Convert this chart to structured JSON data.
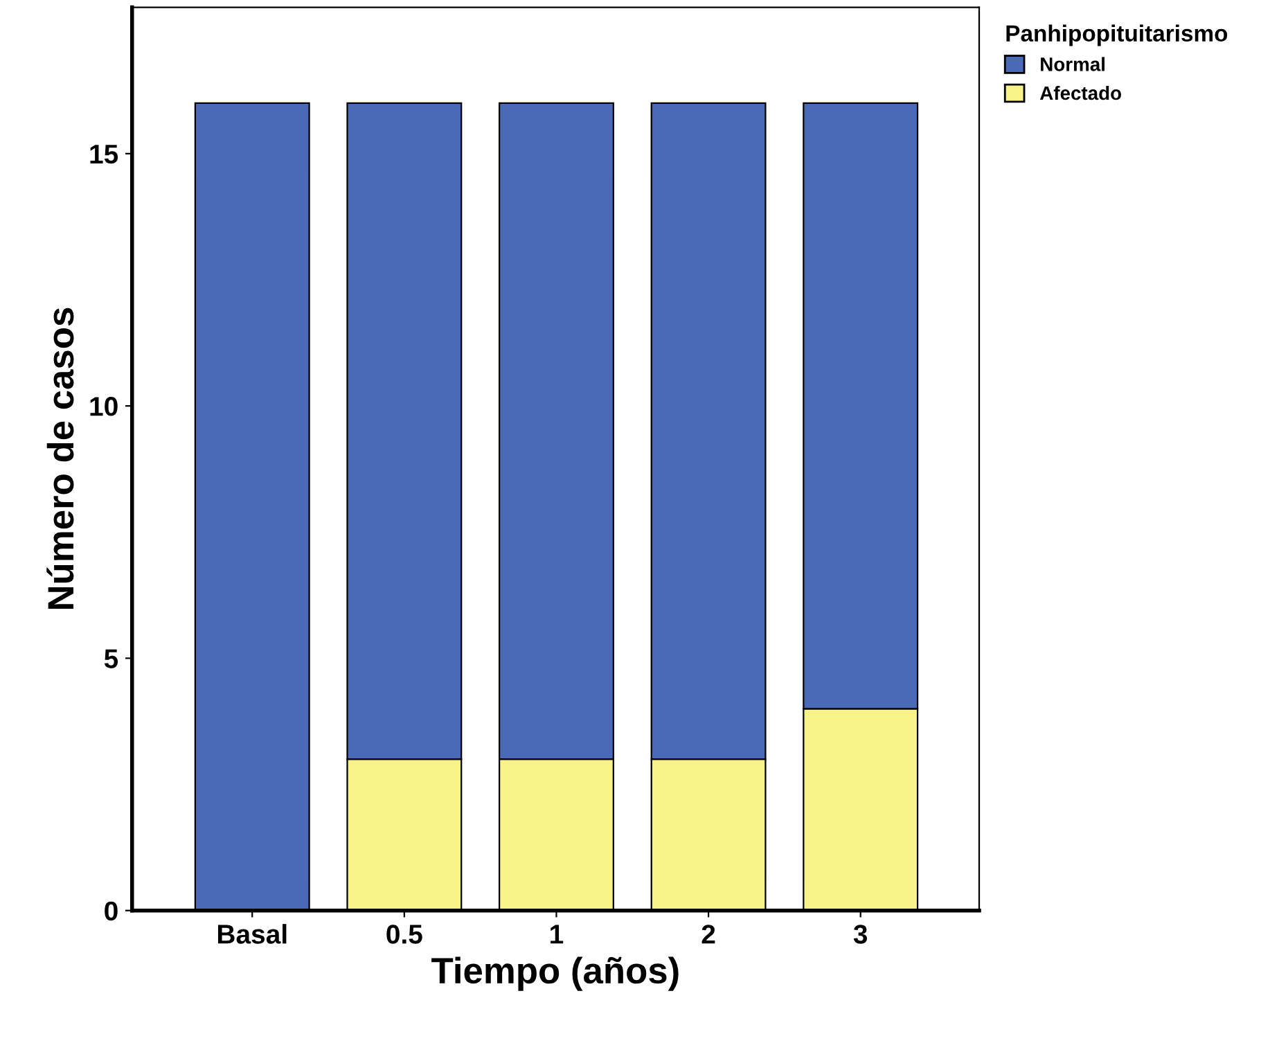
{
  "chart_data": {
    "type": "bar",
    "stacked": true,
    "xlabel": "Tiempo (años)",
    "ylabel": "Número de casos",
    "legend_title": "Panhipopituitarismo",
    "categories": [
      "Basal",
      "0.5",
      "1",
      "2",
      "3"
    ],
    "series": [
      {
        "name": "Afectado",
        "color": "#f8f28a",
        "values": [
          0,
          3,
          3,
          3,
          4
        ]
      },
      {
        "name": "Normal",
        "color": "#4a6ab8",
        "values": [
          16,
          13,
          13,
          13,
          12
        ]
      }
    ],
    "ylim": [
      0,
      17.9
    ],
    "yticks": [
      0,
      5,
      10,
      15
    ],
    "grid": false,
    "legend": "top right"
  }
}
